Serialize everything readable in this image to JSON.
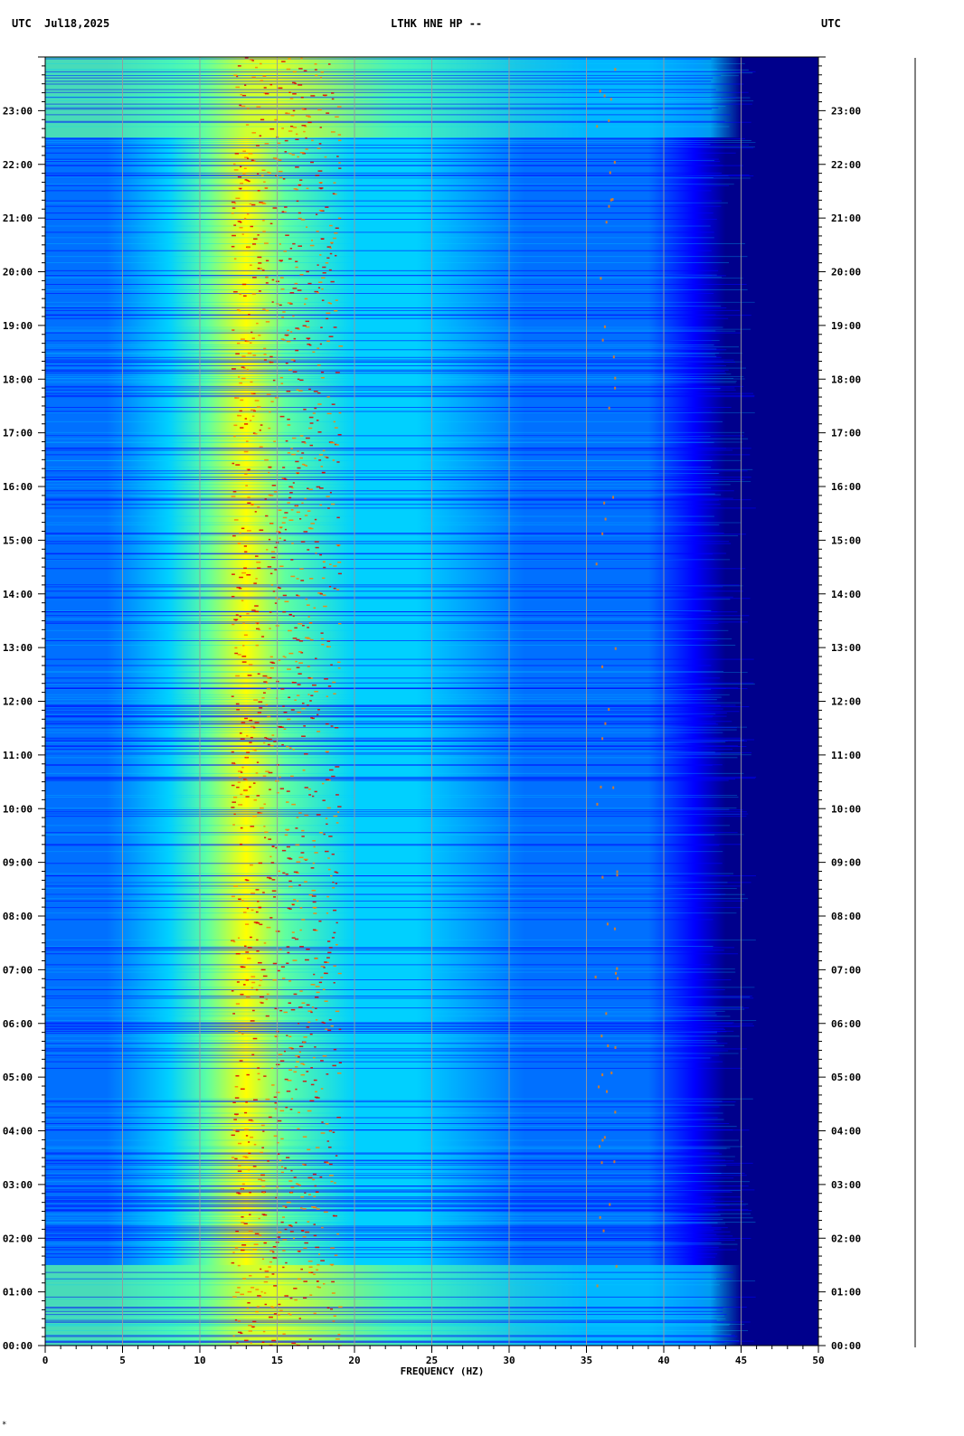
{
  "header": {
    "left_tz": "UTC",
    "date": "Jul18,2025",
    "station": "LTHK HNE HP --",
    "right_tz": "UTC"
  },
  "chart_data": {
    "type": "heatmap",
    "title": "LTHK HNE HP --",
    "xlabel": "FREQUENCY (HZ)",
    "ylabel": "UTC",
    "xlim": [
      0,
      50
    ],
    "x_ticks": [
      0,
      5,
      10,
      15,
      20,
      25,
      30,
      35,
      40,
      45,
      50
    ],
    "y_ticks": [
      "00:00",
      "01:00",
      "02:00",
      "03:00",
      "04:00",
      "05:00",
      "06:00",
      "07:00",
      "08:00",
      "09:00",
      "10:00",
      "11:00",
      "12:00",
      "13:00",
      "14:00",
      "15:00",
      "16:00",
      "17:00",
      "18:00",
      "19:00",
      "20:00",
      "21:00",
      "22:00",
      "23:00"
    ],
    "time_range_hours": [
      0,
      24
    ],
    "grid": true,
    "colormap": [
      "#00008c",
      "#0000ff",
      "#0070ff",
      "#00d0ff",
      "#60ffa0",
      "#ffff00",
      "#ff8000",
      "#e00000"
    ],
    "energy_bands_hz": [
      [
        10,
        20
      ],
      [
        35.5,
        37
      ]
    ],
    "high_freq_cutoff_hz": 43,
    "footer_mark": "*"
  }
}
